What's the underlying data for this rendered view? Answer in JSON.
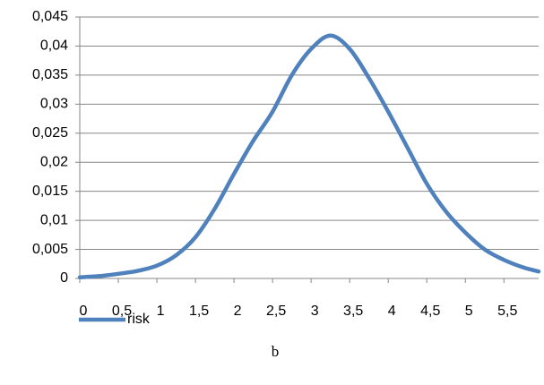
{
  "chart_data": {
    "type": "line",
    "x": [
      0,
      0.25,
      0.5,
      0.75,
      1,
      1.25,
      1.5,
      1.75,
      2,
      2.25,
      2.5,
      2.75,
      3,
      3.25,
      3.5,
      3.75,
      4,
      4.25,
      4.5,
      4.75,
      5,
      5.25,
      5.5,
      5.75,
      5.95
    ],
    "series": [
      {
        "name": "risk",
        "color": "#4f81bd",
        "values": [
          0.0002,
          0.0004,
          0.0008,
          0.0013,
          0.0022,
          0.004,
          0.0071,
          0.012,
          0.018,
          0.0237,
          0.0287,
          0.035,
          0.0395,
          0.0418,
          0.0395,
          0.0345,
          0.0287,
          0.0225,
          0.0163,
          0.0115,
          0.0079,
          0.005,
          0.0032,
          0.0019,
          0.0012
        ]
      }
    ],
    "xlim": [
      0,
      5.95
    ],
    "xticks": [
      0,
      {
        "value": 0.5,
        "label": "0,5"
      },
      1,
      {
        "value": 1.5,
        "label": "1,5"
      },
      2,
      {
        "value": 2.5,
        "label": "2,5"
      },
      3,
      {
        "value": 3.5,
        "label": "3,5"
      },
      4,
      {
        "value": 4.5,
        "label": "4,5"
      },
      5,
      {
        "value": 5.5,
        "label": "5,5"
      }
    ],
    "ylim": [
      0,
      0.045
    ],
    "yticks": [
      0,
      {
        "value": 0.005,
        "label": "0,005"
      },
      {
        "value": 0.01,
        "label": "0,01"
      },
      {
        "value": 0.015,
        "label": "0,015"
      },
      {
        "value": 0.02,
        "label": "0,02"
      },
      {
        "value": 0.025,
        "label": "0,025"
      },
      {
        "value": 0.03,
        "label": "0,03"
      },
      {
        "value": 0.035,
        "label": "0,035"
      },
      {
        "value": 0.04,
        "label": "0,04"
      },
      {
        "value": 0.045,
        "label": "0,045"
      }
    ],
    "grid": true,
    "caption": "b"
  }
}
